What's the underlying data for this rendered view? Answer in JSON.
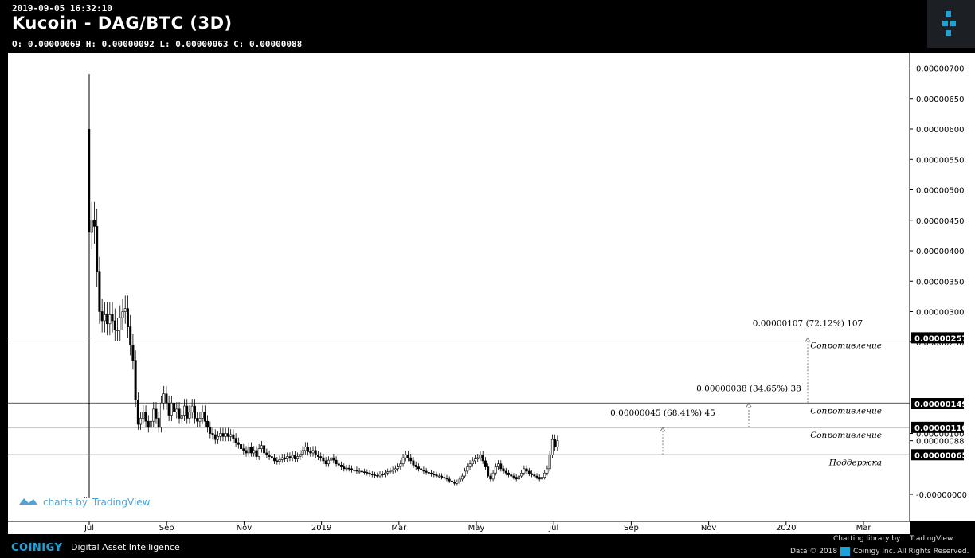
{
  "header": {
    "timestamp": "2019-09-05 16:32:10",
    "title": "Kucoin - DAG/BTC (3D)",
    "ohlc": "O: 0.00000069 H: 0.00000092 L: 0.00000063 C: 0.00000088"
  },
  "footer": {
    "brand": "COINIGY",
    "tagline": "Digital Asset Intelligence",
    "charting_library": "Charting library by",
    "tradingview": "TradingView",
    "data_copyright": "Data © 2018",
    "company": "Coinigy Inc. All Rights Reserved."
  },
  "watermark": {
    "charts_by": "charts by",
    "tradingview": "TradingView"
  },
  "colors": {
    "background": "#000000",
    "plot": "#ffffff",
    "candle": "#000000",
    "brand": "#1ba3d8"
  },
  "chart_data": {
    "type": "candlestick",
    "title": "Kucoin - DAG/BTC (3D)",
    "x_axis": {
      "ticks": [
        "Jul",
        "Sep",
        "Nov",
        "2019",
        "Mar",
        "May",
        "Jul",
        "Sep",
        "Nov",
        "2020",
        "Mar"
      ]
    },
    "y_axis": {
      "ticks": [
        "0.00000700",
        "0.00000650",
        "0.00000600",
        "0.00000550",
        "0.00000500",
        "0.00000450",
        "0.00000400",
        "0.00000350",
        "0.00000300",
        "0.00000250",
        "0.00000100",
        "0.00000088",
        "-0.00000000"
      ],
      "range": [
        -3e-07,
        7.3e-06
      ]
    },
    "price_labels": [
      "0.00000257",
      "0.00000149",
      "0.00000110",
      "0.00000065"
    ],
    "levels": [
      {
        "label": "Сопротивление",
        "value": 2.57e-06
      },
      {
        "label": "Сопротивление",
        "value": 1.5e-06
      },
      {
        "label": "Сопротивление",
        "value": 1.1e-06
      },
      {
        "label": "Поддержка",
        "value": 6.5e-07
      }
    ],
    "measurements": [
      {
        "text": "0.00000107 (72.12%) 107",
        "from": 1.5e-06,
        "to": 2.57e-06
      },
      {
        "text": "0.00000038 (34.65%) 38",
        "from": 1.1e-06,
        "to": 1.5e-06
      },
      {
        "text": "0.00000045 (68.41%) 45",
        "from": 6.5e-07,
        "to": 1.1e-06
      }
    ],
    "series_close": [
      4.3,
      4.5,
      4.4,
      3.65,
      3.0,
      2.85,
      2.95,
      2.8,
      2.95,
      2.85,
      2.7,
      2.7,
      2.9,
      3.0,
      3.05,
      2.75,
      2.45,
      2.2,
      1.55,
      1.15,
      1.25,
      1.35,
      1.2,
      1.1,
      1.2,
      1.4,
      1.25,
      1.1,
      1.5,
      1.65,
      1.5,
      1.3,
      1.5,
      1.35,
      1.4,
      1.25,
      1.3,
      1.45,
      1.25,
      1.35,
      1.45,
      1.25,
      1.2,
      1.25,
      1.35,
      1.2,
      1.1,
      1.0,
      0.98,
      0.9,
      0.95,
      1.0,
      0.95,
      1.0,
      0.95,
      0.98,
      0.92,
      0.85,
      0.82,
      0.75,
      0.72,
      0.68,
      0.78,
      0.68,
      0.72,
      0.62,
      0.75,
      0.8,
      0.68,
      0.65,
      0.62,
      0.6,
      0.55,
      0.54,
      0.57,
      0.6,
      0.58,
      0.62,
      0.6,
      0.64,
      0.58,
      0.62,
      0.66,
      0.72,
      0.78,
      0.7,
      0.68,
      0.72,
      0.65,
      0.62,
      0.6,
      0.55,
      0.5,
      0.56,
      0.6,
      0.56,
      0.5,
      0.48,
      0.45,
      0.42,
      0.43,
      0.42,
      0.4,
      0.4,
      0.38,
      0.38,
      0.37,
      0.36,
      0.35,
      0.33,
      0.32,
      0.31,
      0.3,
      0.33,
      0.32,
      0.35,
      0.37,
      0.38,
      0.4,
      0.42,
      0.45,
      0.5,
      0.6,
      0.65,
      0.6,
      0.55,
      0.48,
      0.45,
      0.42,
      0.4,
      0.38,
      0.36,
      0.35,
      0.33,
      0.32,
      0.3,
      0.3,
      0.28,
      0.27,
      0.25,
      0.22,
      0.2,
      0.18,
      0.2,
      0.25,
      0.3,
      0.38,
      0.45,
      0.5,
      0.55,
      0.58,
      0.6,
      0.65,
      0.55,
      0.45,
      0.3,
      0.25,
      0.35,
      0.45,
      0.5,
      0.42,
      0.38,
      0.35,
      0.32,
      0.3,
      0.28,
      0.25,
      0.3,
      0.35,
      0.42,
      0.38,
      0.34,
      0.32,
      0.3,
      0.28,
      0.25,
      0.28,
      0.35,
      0.42,
      0.65,
      0.9,
      0.78,
      0.88
    ],
    "series_unit": "1e-6 BTC"
  }
}
